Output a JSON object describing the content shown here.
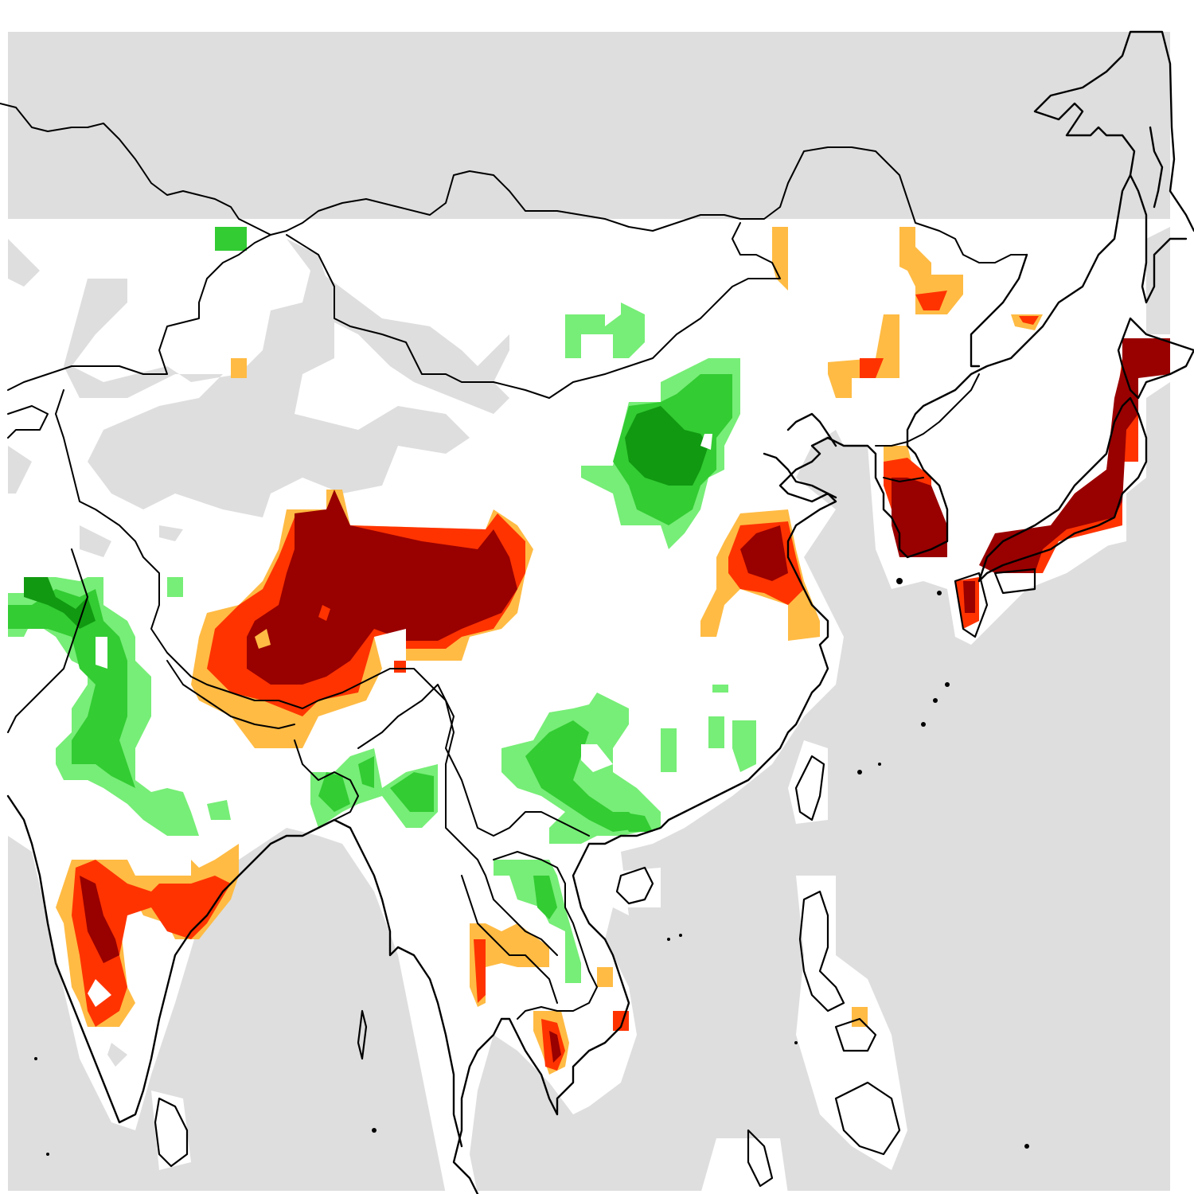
{
  "map": {
    "colors": {
      "no_data": "#dedede",
      "land": "#ffffff",
      "outline": "#000000",
      "dry_extreme": "#990000",
      "dry_severe": "#ff3300",
      "dry_moderate": "#ffbb44",
      "wet_extreme": "#119911",
      "wet_severe": "#33cc33",
      "wet_moderate": "#77ee77"
    },
    "legend": []
  }
}
